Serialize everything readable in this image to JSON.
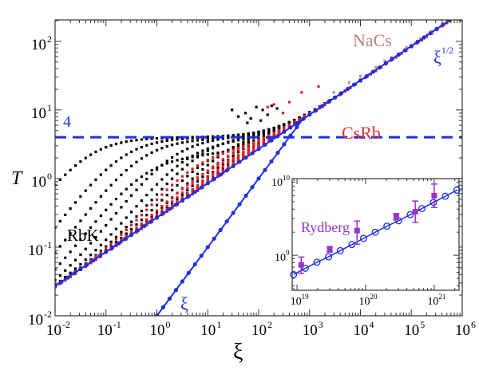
{
  "chart_data": {
    "type": "scatter",
    "xlabel": "ξ",
    "ylabel": "T",
    "xscale": "log",
    "yscale": "log",
    "xlim": [
      0.01,
      1000000
    ],
    "ylim": [
      0.01,
      205
    ],
    "x_ticks": [
      {
        "base": "10",
        "exp": "-2",
        "v": 0.01
      },
      {
        "base": "10",
        "exp": "-1",
        "v": 0.1
      },
      {
        "base": "10",
        "exp": "0",
        "v": 1
      },
      {
        "base": "10",
        "exp": "1",
        "v": 10
      },
      {
        "base": "10",
        "exp": "2",
        "v": 100
      },
      {
        "base": "10",
        "exp": "3",
        "v": 1000
      },
      {
        "base": "10",
        "exp": "4",
        "v": 10000
      },
      {
        "base": "10",
        "exp": "5",
        "v": 100000
      },
      {
        "base": "10",
        "exp": "6",
        "v": 1000000
      }
    ],
    "y_ticks": [
      {
        "base": "10",
        "exp": "-2",
        "v": 0.01
      },
      {
        "base": "10",
        "exp": "-1",
        "v": 0.1
      },
      {
        "base": "10",
        "exp": "0",
        "v": 1
      },
      {
        "base": "10",
        "exp": "1",
        "v": 10
      },
      {
        "base": "10",
        "exp": "2",
        "v": 100
      }
    ],
    "reference_lines": [
      {
        "name": "plateau",
        "label": "4",
        "type": "horizontal",
        "value": 4,
        "style": "dashed",
        "color": "#1f2fe0"
      },
      {
        "name": "sqrt-law",
        "label_base": "ξ",
        "label_exp": "1/2",
        "type": "power",
        "coef": 0.27,
        "power": 0.5,
        "xrange": [
          0.01,
          600000
        ],
        "color": "#1f2fe0"
      },
      {
        "name": "linear-law",
        "label_base": "ξ",
        "label_exp": "",
        "type": "power",
        "coef": 0.01,
        "power": 1,
        "xrange": [
          1,
          700
        ],
        "color": "#1f2fe0"
      }
    ],
    "series": [
      {
        "name": "RbK",
        "color": "#000000",
        "label_color": "#000000",
        "curves": [
          {
            "c": 100,
            "P": 4
          },
          {
            "c": 20,
            "P": 4
          },
          {
            "c": 8,
            "P": 3.8
          },
          {
            "c": 4,
            "P": 2.2
          },
          {
            "c": 2,
            "P": 4
          },
          {
            "c": 1,
            "P": 3.5
          },
          {
            "c": 0.6,
            "P": 4
          },
          {
            "c": 0.35,
            "P": 3
          },
          {
            "c": 0.2,
            "P": 4
          },
          {
            "c": 0.12,
            "P": 3.6
          },
          {
            "c": 0.08,
            "P": 4
          },
          {
            "c": 0.05,
            "P": 3.2
          },
          {
            "c": 0.035,
            "P": 4
          },
          {
            "c": 0.025,
            "P": 3.8
          },
          {
            "c": 0.018,
            "P": 4
          },
          {
            "c": 0.014,
            "P": 3.5
          }
        ],
        "extra_points": [
          [
            30,
            10
          ],
          [
            40,
            8
          ],
          [
            55,
            9
          ],
          [
            70,
            7.5
          ],
          [
            90,
            11
          ],
          [
            120,
            10
          ],
          [
            150,
            8.5
          ],
          [
            180,
            11.5
          ],
          [
            230,
            10.5
          ],
          [
            60,
            6.5
          ],
          [
            110,
            7
          ]
        ]
      },
      {
        "name": "CsRb",
        "color": "#e02020",
        "label_color": "#e03030",
        "curves": [
          {
            "c": 0.5,
            "P": 2.5
          },
          {
            "c": 0.25,
            "P": 1.6
          },
          {
            "c": 0.15,
            "P": 3
          },
          {
            "c": 0.09,
            "P": 2
          },
          {
            "c": 0.06,
            "P": 3.5
          },
          {
            "c": 0.04,
            "P": 2.6
          },
          {
            "c": 0.028,
            "P": 4
          },
          {
            "c": 0.02,
            "P": 3
          },
          {
            "c": 0.016,
            "P": 4
          },
          {
            "c": 0.013,
            "P": 3.5
          }
        ],
        "extra_points": [
          [
            150,
            11
          ],
          [
            200,
            12
          ],
          [
            300,
            9
          ],
          [
            400,
            13
          ],
          [
            700,
            18
          ],
          [
            1500,
            22
          ]
        ]
      },
      {
        "name": "NaCs",
        "color": "#c48a8a",
        "label_color": "#b88080",
        "curves": [],
        "extra_points": [
          [
            3000,
            18
          ],
          [
            6000,
            25
          ],
          [
            10000,
            31
          ],
          [
            20000,
            42
          ],
          [
            40000,
            58
          ],
          [
            80000,
            82
          ],
          [
            150000,
            110
          ],
          [
            250000,
            140
          ],
          [
            400000,
            175
          ],
          [
            15000,
            33
          ],
          [
            30000,
            52
          ],
          [
            60000,
            66
          ],
          [
            120000,
            95
          ],
          [
            200000,
            125
          ]
        ]
      }
    ],
    "sampling": {
      "log_step": 0.1,
      "xmin": 0.01,
      "xmax": 1000000,
      "model": "T = sqrt( (cξP/(cξ+P))^2 + (0.27 ξ^0.5)^2 )"
    },
    "inset": {
      "title": "Rydberg",
      "title_color": "#9933cc",
      "xscale": "log",
      "yscale": "log",
      "xlim": [
        8.5e+18,
        2.3e+21
      ],
      "ylim": [
        350000000.0,
        10000000000.0
      ],
      "x_ticks": [
        {
          "base": "10",
          "exp": "19",
          "v": 1e+19
        },
        {
          "base": "10",
          "exp": "20",
          "v": 1e+20
        },
        {
          "base": "10",
          "exp": "21",
          "v": 1e+21
        }
      ],
      "y_ticks": [
        {
          "base": "10",
          "exp": "9",
          "v": 1000000000.0
        },
        {
          "base": "10",
          "exp": "10",
          "v": 10000000000.0
        }
      ],
      "model_points": {
        "color": "#1f2fe0",
        "x": [
          8.9e+18,
          1.32e+19,
          1.95e+19,
          2.88e+19,
          4.27e+19,
          6.31e+19,
          9.33e+19,
          1.38e+20,
          2.04e+20,
          3.02e+20,
          4.47e+20,
          6.61e+20,
          9.77e+20,
          1.45e+21,
          2.14e+21
        ],
        "y": [
          562000000.0,
          676000000.0,
          813000000.0,
          955000000.0,
          1150000000.0,
          1380000000.0,
          1660000000.0,
          2000000000.0,
          2400000000.0,
          2820000000.0,
          3390000000.0,
          4070000000.0,
          4900000000.0,
          5890000000.0,
          7080000000.0
        ]
      },
      "experiment": {
        "color": "#9933cc",
        "points": [
          {
            "x": 1.15e+19,
            "y": 750000000.0,
            "lo": 580000000.0,
            "hi": 950000000.0
          },
          {
            "x": 3e+19,
            "y": 1200000000.0,
            "lo": 1100000000.0,
            "hi": 1300000000.0
          },
          {
            "x": 7.5e+19,
            "y": 2100000000.0,
            "lo": 1400000000.0,
            "hi": 2800000000.0
          },
          {
            "x": 2.8e+20,
            "y": 3200000000.0,
            "lo": 2900000000.0,
            "hi": 3500000000.0
          },
          {
            "x": 5.3e+20,
            "y": 3700000000.0,
            "lo": 2700000000.0,
            "hi": 5100000000.0
          },
          {
            "x": 1e+21,
            "y": 6000000000.0,
            "lo": 4200000000.0,
            "hi": 8500000000.0
          }
        ]
      }
    }
  }
}
